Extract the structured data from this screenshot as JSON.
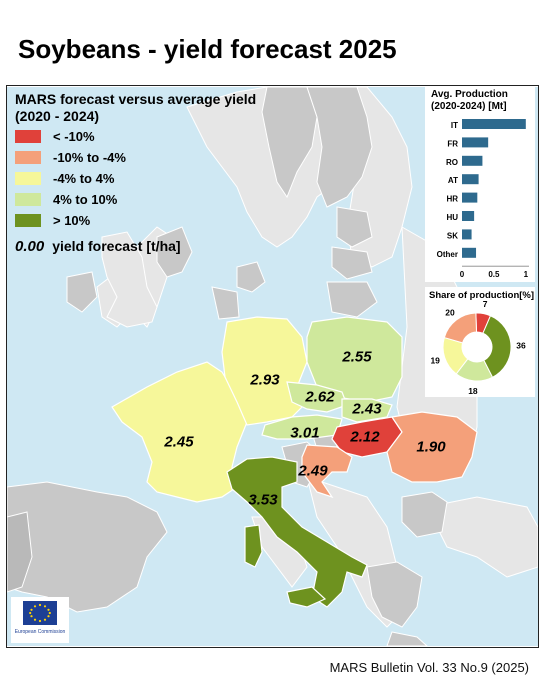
{
  "title": "Soybeans - yield forecast 2025",
  "footer": "MARS Bulletin Vol. 33 No.9 (2025)",
  "legend": {
    "title_line1": "MARS forecast versus average yield",
    "title_line2": "(2020 - 2024)",
    "classes": [
      {
        "label": "< -10%",
        "color": "#e0413a"
      },
      {
        "label": "-10% to -4%",
        "color": "#f4a07a"
      },
      {
        "label": "-4% to 4%",
        "color": "#f6f79a"
      },
      {
        "label": "4% to 10%",
        "color": "#cfe89c"
      },
      {
        "label": "> 10%",
        "color": "#6e921f"
      }
    ],
    "yield_example": "0.00",
    "yield_text": "yield forecast [t/ha]"
  },
  "countries": [
    {
      "code": "FR",
      "yield": "2.45",
      "color": "#f6f79a"
    },
    {
      "code": "DE",
      "yield": "2.93",
      "color": "#f6f79a"
    },
    {
      "code": "PL",
      "yield": "2.55",
      "color": "#cfe89c"
    },
    {
      "code": "CZ",
      "yield": "2.62",
      "color": "#cfe89c"
    },
    {
      "code": "SK",
      "yield": "2.43",
      "color": "#cfe89c"
    },
    {
      "code": "AT",
      "yield": "3.01",
      "color": "#cfe89c"
    },
    {
      "code": "HU",
      "yield": "2.12",
      "color": "#e0413a"
    },
    {
      "code": "RO",
      "yield": "1.90",
      "color": "#f4a07a"
    },
    {
      "code": "HR",
      "yield": "2.49",
      "color": "#f4a07a"
    },
    {
      "code": "IT",
      "yield": "3.53",
      "color": "#6e921f"
    }
  ],
  "chart_data": [
    {
      "type": "bar",
      "title": "Avg. Production (2020-2024) [Mt]",
      "categories": [
        "IT",
        "FR",
        "RO",
        "AT",
        "HR",
        "HU",
        "SK",
        "Other"
      ],
      "values": [
        1.0,
        0.41,
        0.32,
        0.26,
        0.24,
        0.19,
        0.15,
        0.22
      ],
      "xticks": [
        "0",
        "0.5",
        "1"
      ],
      "xlim": [
        0,
        1.05
      ],
      "bar_color": "#2e6a8e"
    },
    {
      "type": "pie",
      "title": "Share of production[%]",
      "values": [
        7,
        36,
        18,
        19,
        20
      ],
      "labels": [
        "7",
        "36",
        "18",
        "19",
        "20"
      ],
      "colors": [
        "#e0413a",
        "#6e921f",
        "#cfe89c",
        "#f6f79a",
        "#f4a07a"
      ]
    }
  ],
  "logo_text": "European Commission",
  "colors": {
    "sea": "#cfe8f3",
    "other_land": "#c8c8c8",
    "nonEU": "#e6e6e6",
    "border": "#ffffff"
  }
}
